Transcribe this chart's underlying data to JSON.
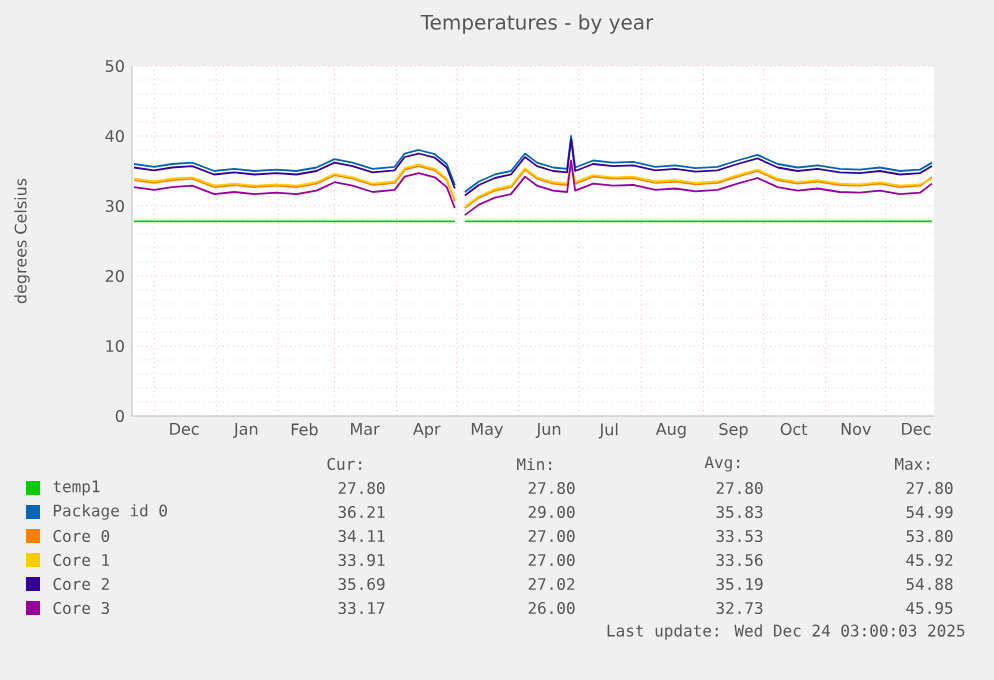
{
  "chart_data": {
    "type": "line",
    "title": "Temperatures - by year",
    "ylabel": "degrees Celsius",
    "x": [
      "2024-11-21",
      "2024-12-01",
      "2024-12-10",
      "2024-12-20",
      "2024-12-31",
      "2025-01-10",
      "2025-01-20",
      "2025-01-31",
      "2025-02-10",
      "2025-02-20",
      "2025-03-01",
      "2025-03-10",
      "2025-03-20",
      "2025-03-31",
      "2025-04-05",
      "2025-04-12",
      "2025-04-20",
      "2025-04-26",
      "2025-04-30",
      "2025-05-03",
      "2025-05-05",
      "2025-05-12",
      "2025-05-20",
      "2025-05-28",
      "2025-06-04",
      "2025-06-10",
      "2025-06-18",
      "2025-06-25",
      "2025-06-27",
      "2025-06-29",
      "2025-07-08",
      "2025-07-18",
      "2025-07-28",
      "2025-08-08",
      "2025-08-18",
      "2025-08-28",
      "2025-09-08",
      "2025-09-18",
      "2025-09-28",
      "2025-10-08",
      "2025-10-18",
      "2025-10-28",
      "2025-11-08",
      "2025-11-18",
      "2025-11-28",
      "2025-12-08",
      "2025-12-18",
      "2025-12-24"
    ],
    "series": [
      {
        "name": "temp1",
        "color": "#00cc00",
        "values": [
          27.8,
          27.8,
          27.8,
          27.8,
          27.8,
          27.8,
          27.8,
          27.8,
          27.8,
          27.8,
          27.8,
          27.8,
          27.8,
          27.8,
          27.8,
          27.8,
          27.8,
          27.8,
          27.8,
          null,
          27.8,
          27.8,
          27.8,
          27.8,
          27.8,
          27.8,
          27.8,
          27.8,
          27.8,
          27.8,
          27.8,
          27.8,
          27.8,
          27.8,
          27.8,
          27.8,
          27.8,
          27.8,
          27.8,
          27.8,
          27.8,
          27.8,
          27.8,
          27.8,
          27.8,
          27.8,
          27.8,
          27.8
        ]
      },
      {
        "name": "Package id 0",
        "color": "#0066b3",
        "values": [
          36.0,
          35.6,
          36.0,
          36.2,
          35.0,
          35.3,
          35.0,
          35.2,
          35.0,
          35.5,
          36.7,
          36.2,
          35.3,
          35.6,
          37.5,
          38.0,
          37.4,
          36.0,
          33.0,
          null,
          32.0,
          33.5,
          34.5,
          35.0,
          37.5,
          36.2,
          35.5,
          35.3,
          40.0,
          35.5,
          36.5,
          36.2,
          36.3,
          35.6,
          35.8,
          35.4,
          35.6,
          36.5,
          37.3,
          36.0,
          35.5,
          35.8,
          35.3,
          35.2,
          35.5,
          35.0,
          35.2,
          36.2
        ]
      },
      {
        "name": "Core 0",
        "color": "#ff8000",
        "values": [
          33.7,
          33.3,
          33.7,
          33.9,
          32.7,
          33.0,
          32.7,
          32.9,
          32.7,
          33.2,
          34.4,
          33.9,
          33.0,
          33.3,
          35.2,
          35.7,
          35.1,
          33.7,
          30.7,
          null,
          29.7,
          31.2,
          32.2,
          32.7,
          35.2,
          33.9,
          33.2,
          33.0,
          36.0,
          33.2,
          34.2,
          33.9,
          34.0,
          33.3,
          33.5,
          33.1,
          33.3,
          34.2,
          35.0,
          33.7,
          33.2,
          33.5,
          33.0,
          32.9,
          33.2,
          32.7,
          32.9,
          34.1
        ]
      },
      {
        "name": "Core 1",
        "color": "#ffcc00",
        "values": [
          33.9,
          33.5,
          33.9,
          34.1,
          32.9,
          33.2,
          32.9,
          33.1,
          32.9,
          33.4,
          34.6,
          34.1,
          33.2,
          33.5,
          35.4,
          35.9,
          35.3,
          33.9,
          30.9,
          null,
          29.9,
          31.4,
          32.4,
          32.9,
          35.4,
          34.1,
          33.4,
          33.2,
          35.8,
          33.4,
          34.4,
          34.1,
          34.2,
          33.5,
          33.7,
          33.3,
          33.5,
          34.4,
          35.2,
          33.9,
          33.4,
          33.7,
          33.2,
          33.1,
          33.4,
          32.9,
          33.1,
          33.9
        ]
      },
      {
        "name": "Core 2",
        "color": "#330099",
        "values": [
          35.5,
          35.1,
          35.5,
          35.7,
          34.5,
          34.8,
          34.5,
          34.7,
          34.5,
          35.0,
          36.2,
          35.7,
          34.8,
          35.1,
          37.0,
          37.5,
          36.9,
          35.5,
          32.5,
          null,
          31.5,
          33.0,
          34.0,
          34.5,
          37.0,
          35.7,
          35.0,
          34.8,
          39.5,
          35.0,
          36.0,
          35.7,
          35.8,
          35.1,
          35.3,
          34.9,
          35.1,
          36.0,
          36.8,
          35.5,
          35.0,
          35.3,
          34.8,
          34.7,
          35.0,
          34.5,
          34.7,
          35.7
        ]
      },
      {
        "name": "Core 3",
        "color": "#990099",
        "values": [
          32.7,
          32.3,
          32.7,
          32.9,
          31.7,
          32.0,
          31.7,
          31.9,
          31.7,
          32.2,
          33.4,
          32.9,
          32.0,
          32.3,
          34.2,
          34.7,
          34.1,
          32.7,
          29.7,
          null,
          28.7,
          30.2,
          31.2,
          31.7,
          34.2,
          32.9,
          32.2,
          32.0,
          36.5,
          32.2,
          33.2,
          32.9,
          33.0,
          32.3,
          32.5,
          32.1,
          32.3,
          33.2,
          34.0,
          32.7,
          32.2,
          32.5,
          32.0,
          31.9,
          32.2,
          31.7,
          31.9,
          33.2
        ]
      }
    ],
    "xlim": [
      "2024-11-20",
      "2025-12-25"
    ],
    "xticks": [
      {
        "value": "2024-12-01",
        "label": null
      },
      {
        "value": "2024-12-16",
        "label": "Dec"
      },
      {
        "value": "2025-01-01",
        "label": null
      },
      {
        "value": "2025-01-16",
        "label": "Jan"
      },
      {
        "value": "2025-02-01",
        "label": null
      },
      {
        "value": "2025-02-14",
        "label": "Feb"
      },
      {
        "value": "2025-03-01",
        "label": null
      },
      {
        "value": "2025-03-16",
        "label": "Mar"
      },
      {
        "value": "2025-04-01",
        "label": null
      },
      {
        "value": "2025-04-16",
        "label": "Apr"
      },
      {
        "value": "2025-05-01",
        "label": null
      },
      {
        "value": "2025-05-16",
        "label": "May"
      },
      {
        "value": "2025-06-01",
        "label": null
      },
      {
        "value": "2025-06-16",
        "label": "Jun"
      },
      {
        "value": "2025-07-01",
        "label": null
      },
      {
        "value": "2025-07-16",
        "label": "Jul"
      },
      {
        "value": "2025-08-01",
        "label": null
      },
      {
        "value": "2025-08-16",
        "label": "Aug"
      },
      {
        "value": "2025-09-01",
        "label": null
      },
      {
        "value": "2025-09-16",
        "label": "Sep"
      },
      {
        "value": "2025-10-01",
        "label": null
      },
      {
        "value": "2025-10-16",
        "label": "Oct"
      },
      {
        "value": "2025-11-01",
        "label": null
      },
      {
        "value": "2025-11-16",
        "label": "Nov"
      },
      {
        "value": "2025-12-01",
        "label": null
      },
      {
        "value": "2025-12-16",
        "label": "Dec"
      }
    ],
    "ylim": [
      0,
      50
    ],
    "yticks": [
      0,
      10,
      20,
      30,
      40,
      50
    ],
    "grid": true,
    "legend": "bottom",
    "annotations": [
      "Cur:",
      "Min:",
      "Avg:",
      "Max:",
      "27.80",
      "27.80",
      "27.80",
      "27.80",
      "36.21",
      "29.00",
      "35.83",
      "54.99",
      "34.11",
      "27.00",
      "33.53",
      "53.80",
      "33.91",
      "27.00",
      "33.56",
      "45.92",
      "35.69",
      "27.02",
      "35.19",
      "54.88",
      "33.17",
      "26.00",
      "32.73",
      "45.95",
      "Last update: Wed Dec 24 03:00:03 2025"
    ]
  }
}
